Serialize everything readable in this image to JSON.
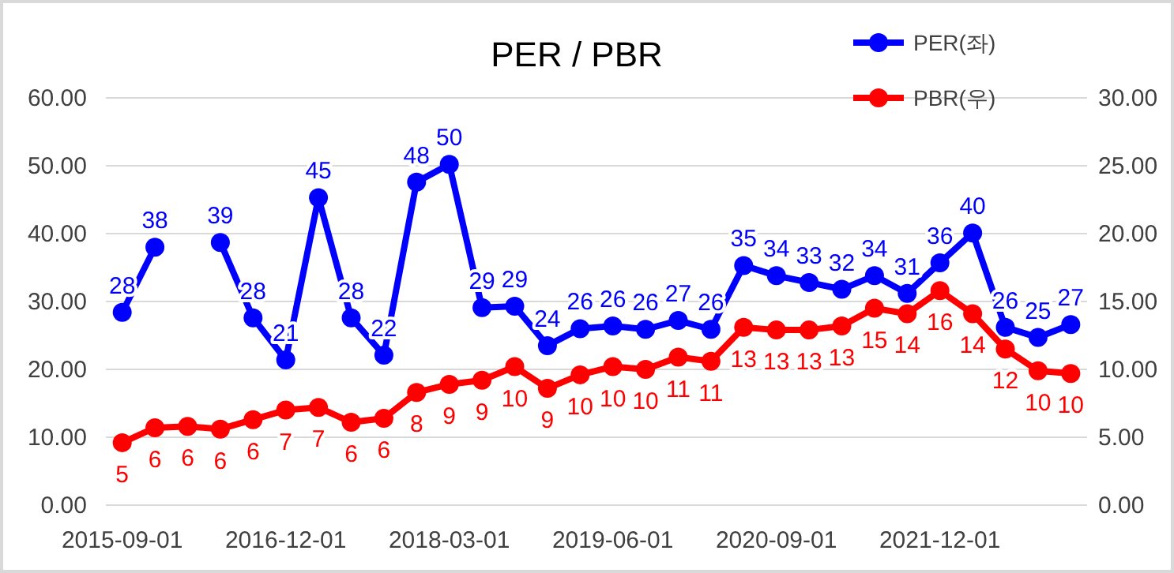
{
  "chart_data": {
    "type": "line",
    "title": "PER / PBR",
    "categories": [
      "2015-09-01",
      null,
      null,
      null,
      null,
      "2016-12-01",
      null,
      null,
      null,
      null,
      "2018-03-01",
      null,
      null,
      null,
      null,
      "2019-06-01",
      null,
      null,
      null,
      null,
      "2020-09-01",
      null,
      null,
      null,
      null,
      "2021-12-01",
      null,
      null,
      null,
      null
    ],
    "series": [
      {
        "name": "PER(좌)",
        "color": "#0000ff",
        "values": [
          28.4,
          38.0,
          null,
          38.7,
          27.6,
          21.4,
          45.3,
          27.6,
          22.1,
          47.6,
          50.2,
          29.1,
          29.3,
          23.5,
          26.0,
          26.4,
          25.9,
          27.2,
          25.9,
          35.3,
          33.8,
          32.8,
          31.8,
          33.8,
          31.2,
          35.7,
          40.1,
          26.2,
          24.7,
          26.6
        ],
        "value_labels": [
          "28",
          "38",
          null,
          "39",
          "28",
          "21",
          "45",
          "28",
          "22",
          "48",
          "50",
          "29",
          "29",
          "24",
          "26",
          "26",
          "26",
          "27",
          "26",
          "35",
          "34",
          "33",
          "32",
          "34",
          "31",
          "36",
          "40",
          "26",
          "25",
          "27"
        ]
      },
      {
        "name": "PBR(우)",
        "color": "#ff0000",
        "axis": "y2",
        "values": [
          4.6,
          5.7,
          5.8,
          5.6,
          6.3,
          7.0,
          7.2,
          6.1,
          6.4,
          8.3,
          8.9,
          9.2,
          10.2,
          8.6,
          9.6,
          10.2,
          10.0,
          10.9,
          10.6,
          13.1,
          12.9,
          12.9,
          13.2,
          14.5,
          14.1,
          15.8,
          14.1,
          11.5,
          9.9,
          9.7
        ],
        "value_labels": [
          "5",
          "6",
          "6",
          "6",
          "6",
          "7",
          "7",
          "6",
          "6",
          "8",
          "9",
          "9",
          "10",
          "9",
          "10",
          "10",
          "10",
          "11",
          "11",
          "13",
          "13",
          "13",
          "13",
          "15",
          "14",
          "16",
          "14",
          "12",
          "10",
          "10"
        ]
      }
    ],
    "ylim": [
      0,
      60
    ],
    "yticks": [
      {
        "value": 0,
        "label": "0.00"
      },
      {
        "value": 10,
        "label": "10.00"
      },
      {
        "value": 20,
        "label": "20.00"
      },
      {
        "value": 30,
        "label": "30.00"
      },
      {
        "value": 40,
        "label": "40.00"
      },
      {
        "value": 50,
        "label": "50.00"
      },
      {
        "value": 60,
        "label": "60.00"
      }
    ],
    "y2lim": [
      0,
      30
    ],
    "y2ticks": [
      {
        "value": 0,
        "label": "0.00"
      },
      {
        "value": 5,
        "label": "5.00"
      },
      {
        "value": 10,
        "label": "10.00"
      },
      {
        "value": 15,
        "label": "15.00"
      },
      {
        "value": 20,
        "label": "20.00"
      },
      {
        "value": 25,
        "label": "25.00"
      },
      {
        "value": 30,
        "label": "30.00"
      }
    ],
    "grid": "y",
    "legend": "top right",
    "marker": "circle",
    "line_style": "solid"
  }
}
